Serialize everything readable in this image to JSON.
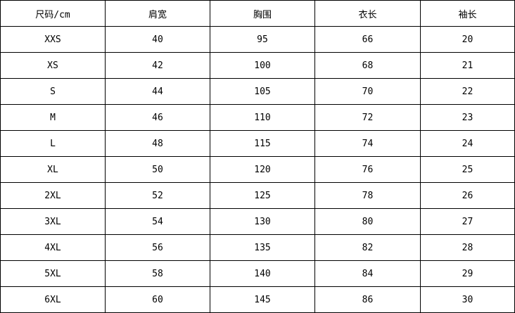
{
  "headers": [
    "尺码/cm",
    "肩宽",
    "胸围",
    "衣长",
    "袖长"
  ],
  "rows": [
    [
      "XXS",
      "40",
      "95",
      "66",
      "20"
    ],
    [
      "XS",
      "42",
      "100",
      "68",
      "21"
    ],
    [
      "S",
      "44",
      "105",
      "70",
      "22"
    ],
    [
      "M",
      "46",
      "110",
      "72",
      "23"
    ],
    [
      "L",
      "48",
      "115",
      "74",
      "24"
    ],
    [
      "XL",
      "50",
      "120",
      "76",
      "25"
    ],
    [
      "2XL",
      "52",
      "125",
      "78",
      "26"
    ],
    [
      "3XL",
      "54",
      "130",
      "80",
      "27"
    ],
    [
      "4XL",
      "56",
      "135",
      "82",
      "28"
    ],
    [
      "5XL",
      "58",
      "140",
      "84",
      "29"
    ],
    [
      "6XL",
      "60",
      "145",
      "86",
      "30"
    ]
  ]
}
